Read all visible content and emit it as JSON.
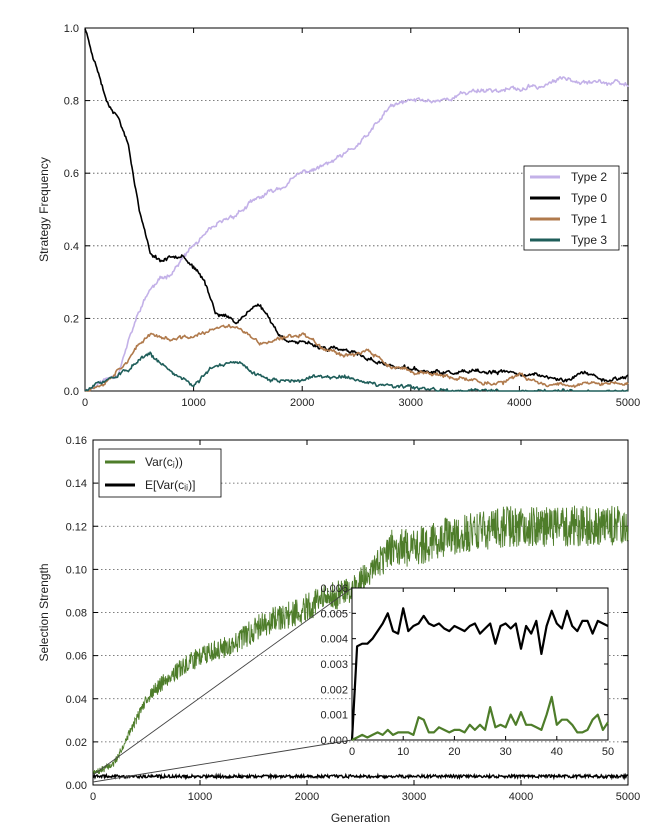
{
  "chart_data": [
    {
      "type": "line",
      "xlabel": "",
      "ylabel": "Strategy Frequency",
      "xlim": [
        0,
        5000
      ],
      "ylim": [
        0,
        1.0
      ],
      "xticks": [
        0,
        1000,
        2000,
        3000,
        4000,
        5000
      ],
      "yticks": [
        0.0,
        0.2,
        0.4,
        0.6,
        0.8,
        1.0
      ],
      "ytick_labels": [
        "0.0",
        "0.2",
        "0.4",
        "0.6",
        "0.8",
        "1.0"
      ],
      "grid": "horizontal dotted",
      "legend_position": "right",
      "series": [
        {
          "name": "Type 2",
          "color": "#c3b1e8",
          "x": [
            0,
            300,
            500,
            600,
            800,
            1000,
            1200,
            1400,
            1600,
            1800,
            2000,
            2200,
            2400,
            2600,
            2800,
            3000,
            3200,
            3400,
            3600,
            3800,
            4000,
            4200,
            4400,
            4600,
            4800,
            5000
          ],
          "y": [
            0.0,
            0.05,
            0.22,
            0.28,
            0.33,
            0.4,
            0.45,
            0.49,
            0.53,
            0.56,
            0.6,
            0.62,
            0.65,
            0.7,
            0.78,
            0.8,
            0.8,
            0.81,
            0.83,
            0.83,
            0.83,
            0.84,
            0.86,
            0.86,
            0.85,
            0.84
          ]
        },
        {
          "name": "Type 0",
          "color": "#000000",
          "x": [
            0,
            100,
            200,
            300,
            400,
            500,
            600,
            700,
            800,
            900,
            1000,
            1100,
            1200,
            1400,
            1500,
            1600,
            1700,
            1800,
            2000,
            2200,
            2400,
            2600,
            2800,
            3000,
            3200,
            3500,
            3800,
            4000,
            4200,
            4400,
            4600,
            4800,
            5000
          ],
          "y": [
            1.0,
            0.9,
            0.8,
            0.76,
            0.68,
            0.5,
            0.38,
            0.36,
            0.37,
            0.38,
            0.34,
            0.3,
            0.22,
            0.19,
            0.22,
            0.24,
            0.2,
            0.15,
            0.13,
            0.12,
            0.11,
            0.09,
            0.07,
            0.06,
            0.05,
            0.05,
            0.05,
            0.05,
            0.04,
            0.03,
            0.05,
            0.03,
            0.04
          ]
        },
        {
          "name": "Type 1",
          "color": "#b07a4c",
          "x": [
            0,
            200,
            400,
            600,
            800,
            1000,
            1200,
            1400,
            1600,
            1800,
            2000,
            2200,
            2400,
            2600,
            2800,
            3000,
            3200,
            3400,
            3600,
            3800,
            4000,
            4200,
            4400,
            4600,
            4800,
            5000
          ],
          "y": [
            0.0,
            0.03,
            0.09,
            0.16,
            0.14,
            0.15,
            0.17,
            0.18,
            0.13,
            0.14,
            0.16,
            0.12,
            0.1,
            0.11,
            0.07,
            0.05,
            0.05,
            0.03,
            0.03,
            0.02,
            0.04,
            0.02,
            0.02,
            0.02,
            0.02,
            0.02
          ]
        },
        {
          "name": "Type 3",
          "color": "#1f5e5a",
          "x": [
            0,
            200,
            400,
            600,
            800,
            1000,
            1200,
            1400,
            1600,
            1800,
            2000,
            2200,
            2400,
            2600,
            2800,
            3000,
            3200,
            3400,
            3600,
            3800,
            4000,
            4200,
            4400,
            4600,
            4800,
            5000
          ],
          "y": [
            0.0,
            0.03,
            0.06,
            0.1,
            0.05,
            0.02,
            0.07,
            0.08,
            0.04,
            0.03,
            0.03,
            0.04,
            0.04,
            0.02,
            0.01,
            0.01,
            0.0,
            0.0,
            0.0,
            0.0,
            0.0,
            0.0,
            0.0,
            0.0,
            0.0,
            0.0
          ]
        }
      ]
    },
    {
      "type": "line",
      "xlabel": "Generation",
      "ylabel": "Selection Strength",
      "xlim": [
        0,
        5000
      ],
      "ylim": [
        0,
        0.16
      ],
      "xticks": [
        0,
        1000,
        2000,
        3000,
        4000,
        5000
      ],
      "yticks": [
        0.0,
        0.02,
        0.04,
        0.06,
        0.08,
        0.1,
        0.12,
        0.14,
        0.16
      ],
      "ytick_labels": [
        "0.00",
        "0.02",
        "0.04",
        "0.06",
        "0.08",
        "0.10",
        "0.12",
        "0.14",
        "0.16"
      ],
      "grid": "horizontal dotted",
      "legend_position": "upper left",
      "legend_entries": [
        "Var(cⱼ))",
        "E[Var(cᵢⱼ)]"
      ],
      "series": [
        {
          "name": "Var(cⱼ))",
          "color": "#4e7d2a",
          "x": [
            0,
            200,
            300,
            500,
            700,
            1000,
            1300,
            1600,
            1900,
            2100,
            2400,
            2600,
            2800,
            3000,
            3300,
            3600,
            3900,
            4200,
            4500,
            4800,
            5000
          ],
          "y": [
            0.005,
            0.01,
            0.02,
            0.04,
            0.05,
            0.06,
            0.065,
            0.075,
            0.08,
            0.085,
            0.09,
            0.1,
            0.11,
            0.11,
            0.115,
            0.118,
            0.12,
            0.12,
            0.12,
            0.12,
            0.12
          ]
        },
        {
          "name": "E[Var(cᵢⱼ)]",
          "color": "#000000",
          "x": [
            0,
            5000
          ],
          "y": [
            0.004,
            0.004
          ]
        }
      ],
      "inset": {
        "xlim": [
          0,
          50
        ],
        "ylim": [
          0,
          0.006
        ],
        "xticks": [
          0,
          10,
          20,
          30,
          40,
          50
        ],
        "yticks": [
          0.0,
          0.001,
          0.002,
          0.003,
          0.004,
          0.005,
          0.006
        ],
        "ytick_labels": [
          "0.000",
          "0.001",
          "0.002",
          "0.003",
          "0.004",
          "0.005",
          "0.006"
        ],
        "series": [
          {
            "color": "#000000",
            "x": [
              0,
              1,
              2,
              3,
              4,
              5,
              6,
              7,
              8,
              9,
              10,
              11,
              12,
              13,
              14,
              15,
              16,
              17,
              18,
              19,
              20,
              21,
              22,
              23,
              24,
              25,
              26,
              27,
              28,
              29,
              30,
              31,
              32,
              33,
              34,
              35,
              36,
              37,
              38,
              39,
              40,
              41,
              42,
              43,
              44,
              45,
              46,
              47,
              48,
              49,
              50
            ],
            "y": [
              0,
              0.0037,
              0.0038,
              0.0038,
              0.004,
              0.0043,
              0.0046,
              0.005,
              0.0043,
              0.0042,
              0.0052,
              0.0043,
              0.0045,
              0.0046,
              0.0049,
              0.0046,
              0.0045,
              0.0046,
              0.0044,
              0.0043,
              0.0045,
              0.0044,
              0.0043,
              0.0045,
              0.0046,
              0.0042,
              0.0044,
              0.0046,
              0.0038,
              0.0045,
              0.0046,
              0.0044,
              0.0046,
              0.0036,
              0.0045,
              0.0042,
              0.0047,
              0.0034,
              0.0045,
              0.0051,
              0.0046,
              0.0044,
              0.0051,
              0.0045,
              0.0043,
              0.0047,
              0.0047,
              0.0042,
              0.0047,
              0.0046,
              0.0045
            ]
          },
          {
            "color": "#4e7d2a",
            "x": [
              0,
              1,
              2,
              3,
              4,
              5,
              6,
              7,
              8,
              9,
              10,
              11,
              12,
              13,
              14,
              15,
              16,
              17,
              18,
              19,
              20,
              21,
              22,
              23,
              24,
              25,
              26,
              27,
              28,
              29,
              30,
              31,
              32,
              33,
              34,
              35,
              36,
              37,
              38,
              39,
              40,
              41,
              42,
              43,
              44,
              45,
              46,
              47,
              48,
              49,
              50
            ],
            "y": [
              0,
              0.0001,
              0.0002,
              0.0001,
              0.0002,
              0.0003,
              0.0002,
              0.0004,
              0.0002,
              0.0003,
              0.0003,
              0.0003,
              0.0002,
              0.0009,
              0.0008,
              0.0003,
              0.0003,
              0.0005,
              0.0004,
              0.0003,
              0.0004,
              0.0004,
              0.0003,
              0.0006,
              0.0004,
              0.0006,
              0.0004,
              0.0013,
              0.0005,
              0.0006,
              0.0005,
              0.001,
              0.0006,
              0.0011,
              0.0006,
              0.0006,
              0.0005,
              0.0004,
              0.001,
              0.0017,
              0.0006,
              0.0008,
              0.0008,
              0.0006,
              0.0003,
              0.0003,
              0.0004,
              0.0008,
              0.001,
              0.0004,
              0.0007
            ]
          }
        ]
      }
    }
  ]
}
